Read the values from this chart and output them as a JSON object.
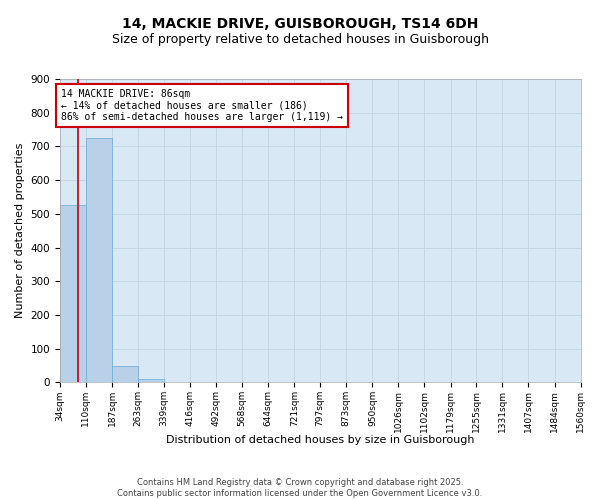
{
  "title": "14, MACKIE DRIVE, GUISBOROUGH, TS14 6DH",
  "subtitle": "Size of property relative to detached houses in Guisborough",
  "xlabel": "Distribution of detached houses by size in Guisborough",
  "ylabel": "Number of detached properties",
  "bar_values": [
    525,
    725,
    50,
    10,
    0,
    0,
    0,
    0,
    0,
    0,
    0,
    0,
    0,
    0,
    0,
    0,
    0,
    0,
    0,
    0
  ],
  "bin_edges": [
    34,
    110,
    187,
    263,
    339,
    416,
    492,
    568,
    644,
    721,
    797,
    873,
    950,
    1026,
    1102,
    1179,
    1255,
    1331,
    1407,
    1484,
    1560
  ],
  "x_labels": [
    "34sqm",
    "110sqm",
    "187sqm",
    "263sqm",
    "339sqm",
    "416sqm",
    "492sqm",
    "568sqm",
    "644sqm",
    "721sqm",
    "797sqm",
    "873sqm",
    "950sqm",
    "1026sqm",
    "1102sqm",
    "1179sqm",
    "1255sqm",
    "1331sqm",
    "1407sqm",
    "1484sqm",
    "1560sqm"
  ],
  "bar_color": "#b8d0e8",
  "bar_edge_color": "#6aaad4",
  "grid_color": "#c0d4e4",
  "bg_color": "#d8e8f4",
  "red_line_x": 86,
  "ylim": [
    0,
    900
  ],
  "annotation_text": "14 MACKIE DRIVE: 86sqm\n← 14% of detached houses are smaller (186)\n86% of semi-detached houses are larger (1,119) →",
  "annotation_box_color": "#ffffff",
  "annotation_border_color": "#cc0000",
  "footer": "Contains HM Land Registry data © Crown copyright and database right 2025.\nContains public sector information licensed under the Open Government Licence v3.0.",
  "title_fontsize": 10,
  "subtitle_fontsize": 9,
  "ylabel_fontsize": 8,
  "xlabel_fontsize": 8,
  "yticks": [
    0,
    100,
    200,
    300,
    400,
    500,
    600,
    700,
    800,
    900
  ]
}
